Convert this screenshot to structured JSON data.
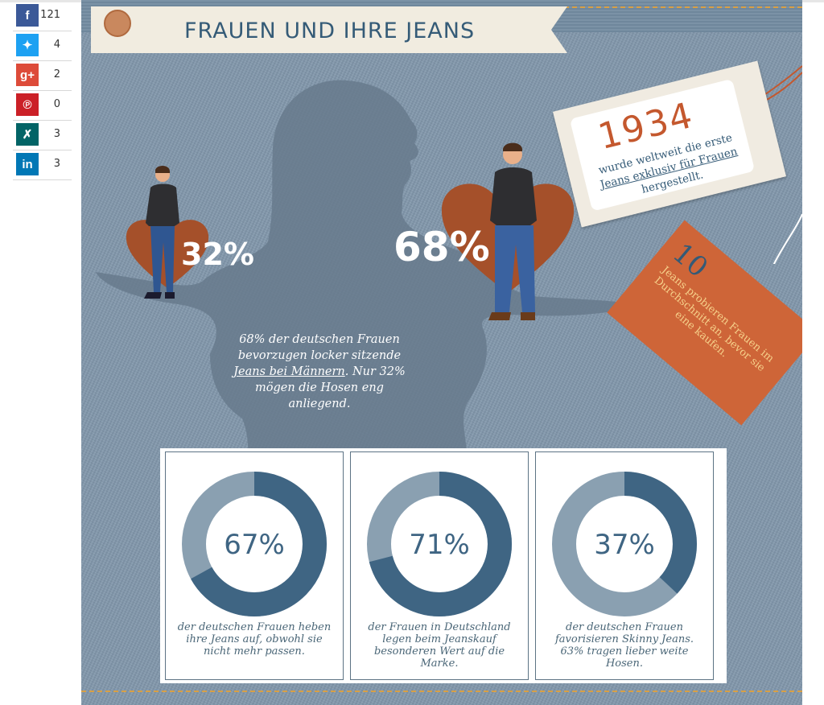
{
  "social": [
    {
      "network": "facebook",
      "icon": "f",
      "color": "#3b5998",
      "count": "121"
    },
    {
      "network": "twitter",
      "icon": "✦",
      "color": "#1da1f2",
      "count": "4"
    },
    {
      "network": "google-plus",
      "icon": "g+",
      "color": "#dd4b39",
      "count": "2"
    },
    {
      "network": "pinterest",
      "icon": "℗",
      "color": "#cb2027",
      "count": "0"
    },
    {
      "network": "xing",
      "icon": "✗",
      "color": "#026466",
      "count": "3"
    },
    {
      "network": "linkedin",
      "icon": "in",
      "color": "#0077b5",
      "count": "3"
    }
  ],
  "banner": {
    "title": "FRAUEN UND IHRE JEANS"
  },
  "hero": {
    "left_percent": "32%",
    "right_percent": "68%",
    "quote_before": "68% der deutschen Frauen bevorzugen locker sitzende ",
    "quote_link": "Jeans bei Männern",
    "quote_after": ". Nur 32% mögen die Hosen eng anliegend."
  },
  "tag_1934": {
    "year": "1934",
    "text_before": "wurde weltweit die erste ",
    "text_link": "Jeans exklusiv für Frauen",
    "text_after": " hergestellt."
  },
  "tag_10": {
    "number": "10",
    "text": "Jeans probieren Frauen im Durchschnitt an, bevor sie eine kaufen."
  },
  "stats": [
    {
      "percent": "67%",
      "value": 67,
      "text": "der deutschen Frauen heben ihre Jeans auf, obwohl sie nicht mehr passen."
    },
    {
      "percent": "71%",
      "value": 71,
      "text": "der Frauen in Deutschland legen beim Jeanskauf besonderen Wert auf die Marke."
    },
    {
      "percent": "37%",
      "value": 37,
      "text": "der deutschen Frauen favorisieren Skinny Jeans. 63% tragen lieber weite Hosen."
    }
  ],
  "colors": {
    "donut_dark": "#3f6583",
    "donut_light": "#8aa0b1",
    "accent_orange": "#c4582e",
    "navy_text": "#355b77"
  }
}
